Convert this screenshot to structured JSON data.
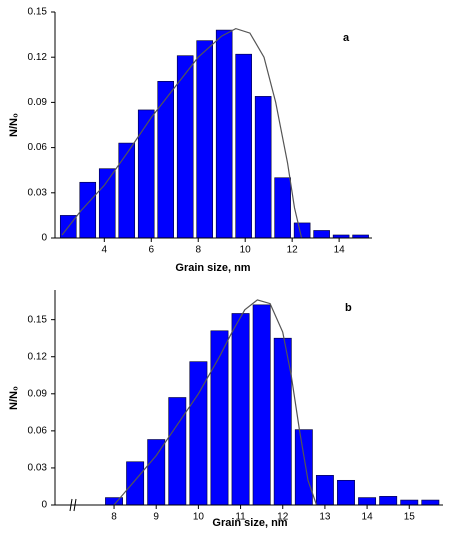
{
  "chart_data": [
    {
      "type": "histogram",
      "title": "a",
      "xlabel": "Grain size, nm",
      "ylabel": "N/N₀",
      "bins": [
        2.05,
        2.88,
        3.71,
        4.54,
        5.37,
        6.2,
        7.03,
        7.86,
        8.69,
        9.52,
        10.35,
        11.18,
        12.01,
        12.84,
        13.67,
        14.5,
        15.33
      ],
      "values": [
        0.015,
        0.037,
        0.046,
        0.063,
        0.085,
        0.104,
        0.121,
        0.131,
        0.138,
        0.122,
        0.094,
        0.04,
        0.01,
        0.005,
        0.002,
        0.002
      ],
      "color": "#0000ff",
      "fit": {
        "color": "#555555",
        "x": [
          2.2,
          3,
          4,
          5,
          6,
          7,
          8,
          9,
          9.6,
          10.2,
          10.8,
          11.3,
          11.8,
          12.1,
          12.4
        ],
        "y": [
          0.002,
          0.018,
          0.035,
          0.057,
          0.08,
          0.1,
          0.12,
          0.134,
          0.139,
          0.136,
          0.12,
          0.09,
          0.05,
          0.02,
          0
        ]
      },
      "xlim": [
        1.9,
        15.4
      ],
      "xticks": [
        4,
        6,
        8,
        10,
        12,
        14
      ],
      "ylim": [
        0,
        0.15
      ],
      "yticks": [
        0,
        0.03,
        0.06,
        0.09,
        0.12,
        0.15
      ]
    },
    {
      "type": "histogram",
      "title": "b",
      "xlabel": "Grain size, nm",
      "ylabel": "N/N₀",
      "bins": [
        7.75,
        8.25,
        8.75,
        9.25,
        9.75,
        10.25,
        10.75,
        11.25,
        11.75,
        12.25,
        12.75,
        13.25,
        13.75,
        14.25,
        14.75,
        15.25,
        15.75
      ],
      "values": [
        0.006,
        0.035,
        0.053,
        0.087,
        0.116,
        0.141,
        0.155,
        0.162,
        0.135,
        0.061,
        0.024,
        0.02,
        0.006,
        0.007,
        0.004,
        0.004
      ],
      "color": "#0000ff",
      "fit": {
        "color": "#555555",
        "x": [
          8,
          8.5,
          9,
          9.5,
          10,
          10.5,
          10.8,
          11.1,
          11.4,
          11.7,
          12,
          12.2,
          12.4,
          12.6,
          12.8
        ],
        "y": [
          0,
          0.02,
          0.04,
          0.065,
          0.09,
          0.12,
          0.14,
          0.158,
          0.166,
          0.163,
          0.14,
          0.105,
          0.06,
          0.02,
          0
        ]
      },
      "xlim": [
        6.6,
        15.8
      ],
      "xticks": [
        8,
        9,
        10,
        11,
        12,
        13,
        14,
        15
      ],
      "ylim": [
        0,
        0.174
      ],
      "yticks": [
        0,
        0.03,
        0.06,
        0.09,
        0.12,
        0.15
      ]
    }
  ]
}
